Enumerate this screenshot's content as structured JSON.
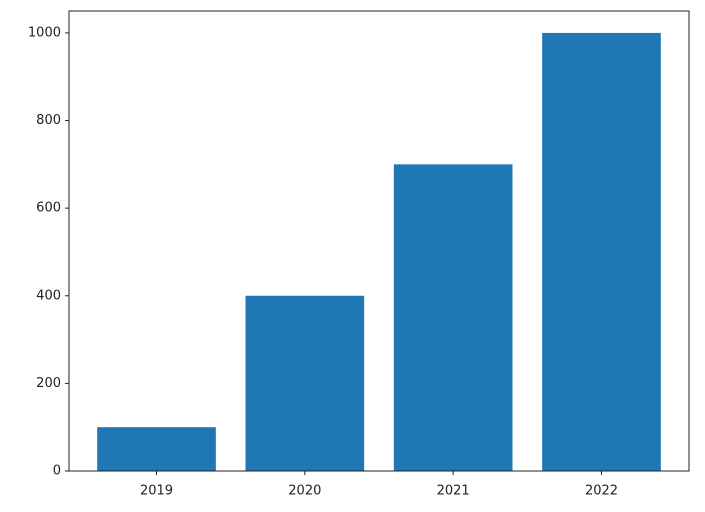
{
  "chart_data": {
    "type": "bar",
    "categories": [
      "2019",
      "2020",
      "2021",
      "2022"
    ],
    "values": [
      100,
      400,
      700,
      1000
    ],
    "color": "#1f77b4",
    "ylim": [
      0,
      1050
    ],
    "yticks": [
      0,
      200,
      400,
      600,
      800,
      1000
    ],
    "grid": false
  }
}
